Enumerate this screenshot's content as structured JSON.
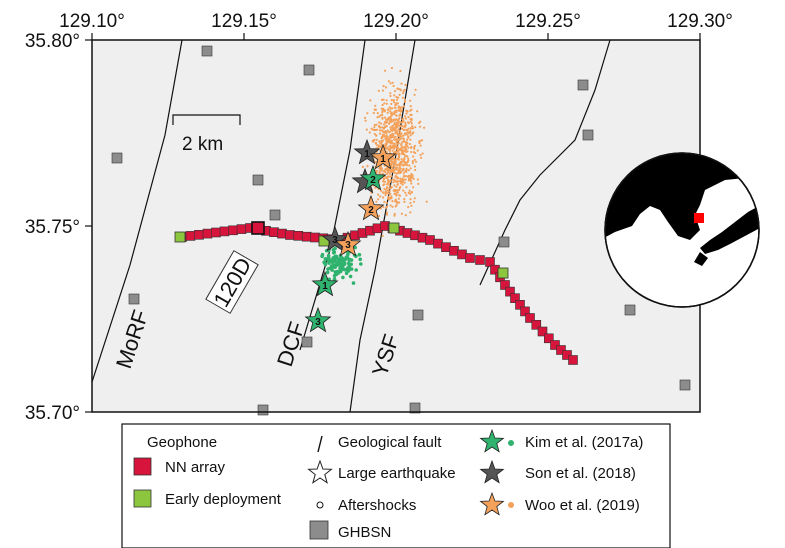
{
  "map": {
    "lon_ticks": [
      "129.10°",
      "129.15°",
      "129.20°",
      "129.25°",
      "129.30°"
    ],
    "lat_ticks": [
      "35.80°",
      "35.75°",
      "35.70°"
    ],
    "scale_bar": "2 km",
    "station_label": "120D",
    "fault_labels": {
      "morf": "MoRF",
      "dcf": "DCF",
      "ysf": "YSF"
    },
    "star_numbers": {
      "son1": "1",
      "woo1": "1",
      "kim2": "2",
      "woo2": "2",
      "son3": "3",
      "woo3": "3",
      "kim1": "1",
      "kim3": "3"
    }
  },
  "legend": {
    "geophone_title": "Geophone",
    "nn_array": "NN array",
    "early_deployment": "Early deployment",
    "gh_bsn": "GHBSN",
    "geological_fault": "Geological fault",
    "large_earthquake": "Large earthquake",
    "aftershocks": "Aftershocks",
    "kim": "Kim et al. (2017a)",
    "son": "Son et al. (2018)",
    "woo": "Woo et al. (2019)"
  },
  "colors": {
    "nn_array": "#d6143c",
    "early_deployment": "#8cc63e",
    "ghbsn": "#8c8c8c",
    "kim": "#2fb36e",
    "son": "#555555",
    "woo": "#f4a25b",
    "map_bg": "#efefef"
  }
}
